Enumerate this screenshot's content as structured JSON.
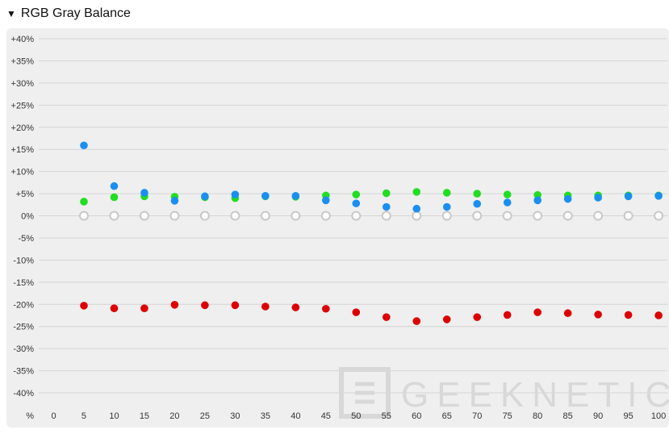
{
  "section": {
    "toggle_icon": "triangle-down-icon",
    "title": "RGB Gray Balance"
  },
  "watermark": {
    "text": "GEEKNETIC"
  },
  "chart_data": {
    "type": "scatter",
    "title": "RGB Gray Balance",
    "xlabel": "%",
    "ylabel": "",
    "x": [
      0,
      5,
      10,
      15,
      20,
      25,
      30,
      35,
      40,
      45,
      50,
      55,
      60,
      65,
      70,
      75,
      80,
      85,
      90,
      95,
      100
    ],
    "x_ticks": [
      "0",
      "5",
      "10",
      "15",
      "20",
      "25",
      "30",
      "35",
      "40",
      "45",
      "50",
      "55",
      "60",
      "65",
      "70",
      "75",
      "80",
      "85",
      "90",
      "95",
      "100"
    ],
    "ylim": [
      -40,
      40
    ],
    "y_ticks": [
      {
        "v": 40,
        "label": "+40%"
      },
      {
        "v": 35,
        "label": "+35%"
      },
      {
        "v": 30,
        "label": "+30%"
      },
      {
        "v": 25,
        "label": "+25%"
      },
      {
        "v": 20,
        "label": "+20%"
      },
      {
        "v": 15,
        "label": "+15%"
      },
      {
        "v": 10,
        "label": "+10%"
      },
      {
        "v": 5,
        "label": "+5%"
      },
      {
        "v": 0,
        "label": "0%"
      },
      {
        "v": -5,
        "label": "-5%"
      },
      {
        "v": -10,
        "label": "-10%"
      },
      {
        "v": -15,
        "label": "-15%"
      },
      {
        "v": -20,
        "label": "-20%"
      },
      {
        "v": -25,
        "label": "-25%"
      },
      {
        "v": -30,
        "label": "-30%"
      },
      {
        "v": -35,
        "label": "-35%"
      },
      {
        "v": -40,
        "label": "-40%"
      }
    ],
    "grid": true,
    "series": [
      {
        "key": "reference",
        "color": "#c8c8c8",
        "hollow": true,
        "points": [
          [
            5,
            0
          ],
          [
            10,
            0
          ],
          [
            15,
            0
          ],
          [
            20,
            0
          ],
          [
            25,
            0
          ],
          [
            30,
            0
          ],
          [
            35,
            0
          ],
          [
            40,
            0
          ],
          [
            45,
            0
          ],
          [
            50,
            0
          ],
          [
            55,
            0
          ],
          [
            60,
            0
          ],
          [
            65,
            0
          ],
          [
            70,
            0
          ],
          [
            75,
            0
          ],
          [
            80,
            0
          ],
          [
            85,
            0
          ],
          [
            90,
            0
          ],
          [
            95,
            0
          ],
          [
            100,
            0
          ]
        ]
      },
      {
        "key": "green",
        "color": "#22dd22",
        "points": [
          [
            5,
            3.2
          ],
          [
            10,
            4.2
          ],
          [
            15,
            4.4
          ],
          [
            20,
            4.3
          ],
          [
            25,
            4.2
          ],
          [
            30,
            4.0
          ],
          [
            35,
            4.4
          ],
          [
            40,
            4.3
          ],
          [
            45,
            4.6
          ],
          [
            50,
            4.8
          ],
          [
            55,
            5.1
          ],
          [
            60,
            5.4
          ],
          [
            65,
            5.2
          ],
          [
            70,
            5.0
          ],
          [
            75,
            4.8
          ],
          [
            80,
            4.7
          ],
          [
            85,
            4.6
          ],
          [
            90,
            4.6
          ],
          [
            95,
            4.6
          ],
          [
            100,
            4.6
          ]
        ]
      },
      {
        "key": "blue",
        "color": "#1a8ff0",
        "points": [
          [
            5,
            15.9
          ],
          [
            10,
            6.7
          ],
          [
            15,
            5.2
          ],
          [
            20,
            3.4
          ],
          [
            25,
            4.4
          ],
          [
            30,
            4.8
          ],
          [
            35,
            4.5
          ],
          [
            40,
            4.5
          ],
          [
            45,
            3.5
          ],
          [
            50,
            2.8
          ],
          [
            55,
            2.0
          ],
          [
            60,
            1.6
          ],
          [
            65,
            2.0
          ],
          [
            70,
            2.7
          ],
          [
            75,
            3.0
          ],
          [
            80,
            3.5
          ],
          [
            85,
            3.8
          ],
          [
            90,
            4.1
          ],
          [
            95,
            4.4
          ],
          [
            100,
            4.5
          ]
        ]
      },
      {
        "key": "red",
        "color": "#dd0000",
        "points": [
          [
            5,
            -20.3
          ],
          [
            10,
            -20.9
          ],
          [
            15,
            -20.9
          ],
          [
            20,
            -20.1
          ],
          [
            25,
            -20.2
          ],
          [
            30,
            -20.2
          ],
          [
            35,
            -20.5
          ],
          [
            40,
            -20.7
          ],
          [
            45,
            -21.0
          ],
          [
            50,
            -21.8
          ],
          [
            55,
            -22.9
          ],
          [
            60,
            -23.8
          ],
          [
            65,
            -23.4
          ],
          [
            70,
            -22.9
          ],
          [
            75,
            -22.4
          ],
          [
            80,
            -21.8
          ],
          [
            85,
            -22.0
          ],
          [
            90,
            -22.3
          ],
          [
            95,
            -22.4
          ],
          [
            100,
            -22.5
          ]
        ]
      }
    ]
  }
}
